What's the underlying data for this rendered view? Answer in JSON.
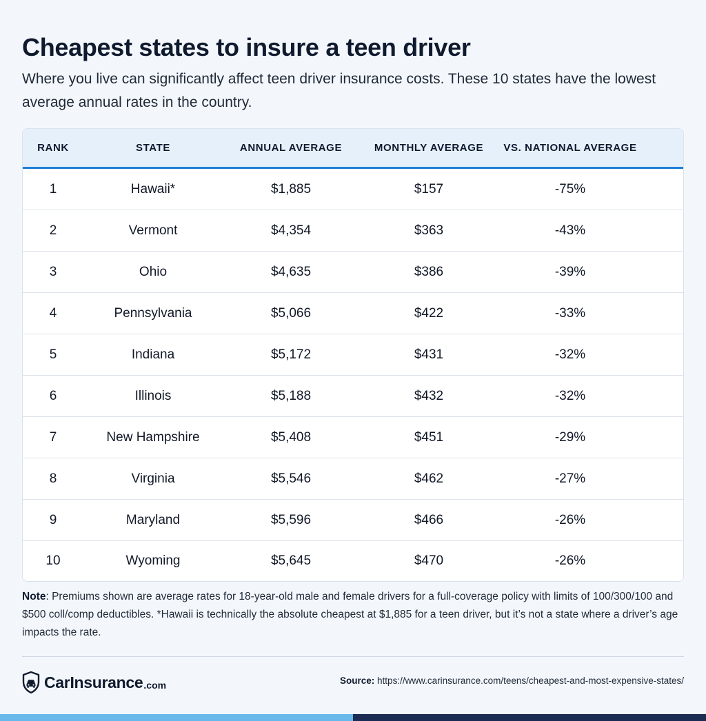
{
  "header": {
    "title": "Cheapest states to insure a teen driver",
    "subtitle": "Where you live can significantly affect teen driver insurance costs. These 10 states have the lowest average annual rates in the country."
  },
  "table": {
    "columns": [
      "RANK",
      "STATE",
      "ANNUAL AVERAGE",
      "MONTHLY AVERAGE",
      "VS. NATIONAL AVERAGE"
    ],
    "rows": [
      [
        "1",
        "Hawaii*",
        "$1,885",
        "$157",
        "-75%"
      ],
      [
        "2",
        "Vermont",
        "$4,354",
        "$363",
        "-43%"
      ],
      [
        "3",
        "Ohio",
        "$4,635",
        "$386",
        "-39%"
      ],
      [
        "4",
        "Pennsylvania",
        "$5,066",
        "$422",
        "-33%"
      ],
      [
        "5",
        "Indiana",
        "$5,172",
        "$431",
        "-32%"
      ],
      [
        "6",
        "Illinois",
        "$5,188",
        "$432",
        "-32%"
      ],
      [
        "7",
        "New Hampshire",
        "$5,408",
        "$451",
        "-29%"
      ],
      [
        "8",
        "Virginia",
        "$5,546",
        "$462",
        "-27%"
      ],
      [
        "9",
        "Maryland",
        "$5,596",
        "$466",
        "-26%"
      ],
      [
        "10",
        "Wyoming",
        "$5,645",
        "$470",
        "-26%"
      ]
    ]
  },
  "note": {
    "label": "Note",
    "text": ": Premiums shown are average rates for 18-year-old male and female drivers for a full-coverage policy with limits of 100/300/100 and $500 coll/comp deductibles. *Hawaii is technically the absolute cheapest at $1,885 for a teen driver, but it’s not a state where a driver’s age impacts the rate."
  },
  "footer": {
    "logo_text": "CarInsurance",
    "logo_suffix": ".com",
    "logo_icon": "shield-car-icon",
    "source_label": "Source:",
    "source_url": "https://www.carinsurance.com/teens/cheapest-and-most-expensive-states/"
  },
  "colors": {
    "header_bg": "#e6f0fb",
    "header_rule": "#1f7ed6",
    "bar_light": "#6ab8ea",
    "bar_dark": "#1c2c52"
  }
}
